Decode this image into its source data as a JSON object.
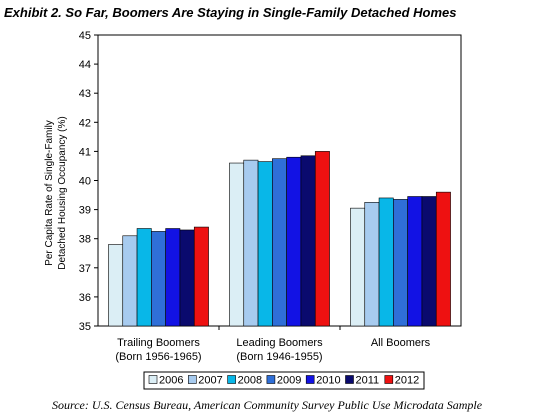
{
  "chart_data": {
    "type": "bar",
    "title": "Exhibit 2. So Far, Boomers Are Staying in Single-Family Detached Homes",
    "ylabel_lines": [
      "Per Capita Rate of Single-Family",
      "Detached Housing Occupancy (%)"
    ],
    "ylim": [
      35,
      45
    ],
    "yticks": [
      35,
      36,
      37,
      38,
      39,
      40,
      41,
      42,
      43,
      44,
      45
    ],
    "grid": false,
    "legend_position": "bottom",
    "categories": [
      {
        "line1": "Trailing Boomers",
        "line2": "(Born 1956-1965)"
      },
      {
        "line1": "Leading Boomers",
        "line2": "(Born 1946-1955)"
      },
      {
        "line1": "All Boomers",
        "line2": ""
      }
    ],
    "series": [
      {
        "name": "2006",
        "color": "#dbeef5",
        "values": [
          37.8,
          40.6,
          39.05
        ]
      },
      {
        "name": "2007",
        "color": "#a7cbef",
        "values": [
          38.1,
          40.7,
          39.25
        ]
      },
      {
        "name": "2008",
        "color": "#08b7e8",
        "values": [
          38.35,
          40.65,
          39.4
        ]
      },
      {
        "name": "2009",
        "color": "#2f6fd8",
        "values": [
          38.25,
          40.75,
          39.35
        ]
      },
      {
        "name": "2010",
        "color": "#1212e4",
        "values": [
          38.35,
          40.8,
          39.45
        ]
      },
      {
        "name": "2011",
        "color": "#0a0a6e",
        "values": [
          38.3,
          40.85,
          39.45
        ]
      },
      {
        "name": "2012",
        "color": "#ee1111",
        "values": [
          38.4,
          41.0,
          39.6
        ]
      }
    ]
  },
  "source": "Source: U.S. Census Bureau, American Community Survey Public Use Microdata Sample"
}
